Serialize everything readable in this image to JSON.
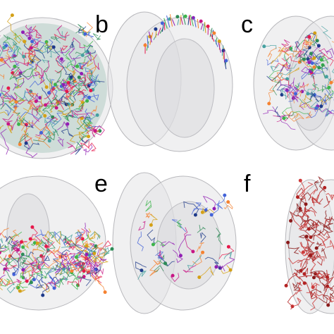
{
  "panels": [
    {
      "label": "b"
    },
    {
      "label": "c"
    },
    {
      "label": "e"
    },
    {
      "label": "f"
    }
  ]
}
